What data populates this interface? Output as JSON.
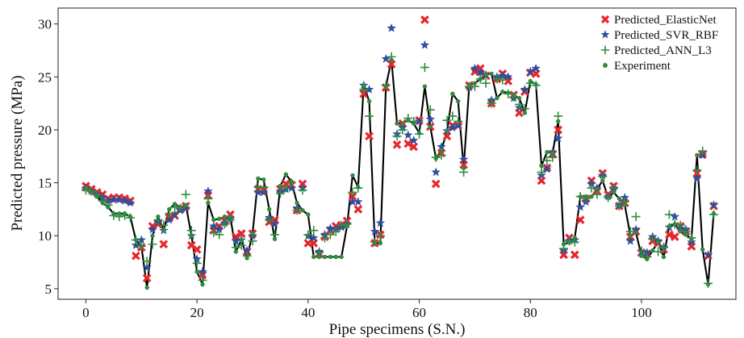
{
  "chart_data": {
    "type": "scatter",
    "xlabel": "Pipe specimens (S.N.)",
    "ylabel": "Predicted pressure (MPa)",
    "xlim": [
      -5,
      117
    ],
    "ylim": [
      4,
      31.5
    ],
    "xticks": [
      0,
      20,
      40,
      60,
      80,
      100
    ],
    "yticks": [
      5,
      10,
      15,
      20,
      25,
      30
    ],
    "grid": false,
    "legend_position": "top-right",
    "x": [
      0,
      1,
      2,
      3,
      4,
      5,
      6,
      7,
      8,
      9,
      10,
      11,
      12,
      13,
      14,
      15,
      16,
      17,
      18,
      19,
      20,
      21,
      22,
      23,
      24,
      25,
      26,
      27,
      28,
      29,
      30,
      31,
      32,
      33,
      34,
      35,
      36,
      37,
      38,
      39,
      40,
      41,
      42,
      43,
      44,
      45,
      46,
      47,
      48,
      49,
      50,
      51,
      52,
      53,
      54,
      55,
      56,
      57,
      58,
      59,
      60,
      61,
      62,
      63,
      64,
      65,
      66,
      67,
      68,
      69,
      70,
      71,
      72,
      73,
      74,
      75,
      76,
      77,
      78,
      79,
      80,
      81,
      82,
      83,
      84,
      85,
      86,
      87,
      88,
      89,
      90,
      91,
      92,
      93,
      94,
      95,
      96,
      97,
      98,
      99,
      100,
      101,
      102,
      103,
      104,
      105,
      106,
      107,
      108,
      109,
      110,
      111,
      112,
      113
    ],
    "series": [
      {
        "name": "Predicted_ElasticNet",
        "color": "#e8262a",
        "marker": "x",
        "values": [
          14.7,
          14.4,
          14.1,
          13.9,
          13.5,
          13.6,
          13.6,
          13.5,
          13.3,
          8.1,
          8.9,
          6.0,
          10.9,
          11.1,
          9.2,
          11.7,
          11.9,
          12.5,
          12.8,
          9.1,
          8.7,
          6.3,
          13.8,
          10.5,
          10.9,
          11.4,
          12.0,
          9.9,
          10.2,
          8.5,
          10.2,
          14.4,
          14.3,
          11.3,
          11.5,
          14.4,
          14.9,
          14.8,
          12.4,
          14.9,
          9.3,
          9.3,
          8.3,
          9.9,
          10.5,
          10.9,
          11.0,
          11.4,
          13.7,
          12.5,
          23.4,
          19.4,
          9.3,
          10.1,
          24.0,
          26.2,
          18.6,
          20.6,
          18.7,
          18.4,
          20.9,
          30.4,
          20.3,
          14.9,
          17.8,
          19.4,
          20.4,
          20.4,
          16.7,
          24.2,
          25.5,
          25.8,
          25.1,
          22.5,
          24.8,
          25.3,
          24.6,
          23.3,
          21.6,
          23.6,
          25.4,
          25.3,
          15.2,
          16.4,
          17.7,
          20.0,
          8.2,
          9.8,
          8.2,
          11.5,
          13.5,
          15.2,
          14.2,
          15.9,
          13.9,
          14.7,
          12.8,
          13.1,
          9.9,
          10.4,
          8.4,
          8.3,
          9.5,
          9.3,
          8.7,
          10.1,
          9.9,
          10.9,
          10.4,
          9.0,
          15.9,
          17.7,
          8.1,
          12.8
        ]
      },
      {
        "name": "Predicted_SVR_RBF",
        "color": "#2c4fa0",
        "marker": "star",
        "values": [
          14.5,
          14.2,
          13.9,
          13.6,
          13.3,
          13.4,
          13.4,
          13.3,
          13.1,
          9.1,
          9.6,
          7.0,
          10.6,
          11.3,
          10.5,
          11.5,
          12.0,
          12.4,
          12.6,
          10.0,
          7.8,
          6.6,
          14.2,
          10.9,
          10.6,
          11.2,
          11.6,
          9.5,
          9.6,
          8.6,
          10.0,
          14.1,
          14.1,
          11.7,
          11.1,
          14.2,
          14.4,
          14.5,
          12.6,
          14.5,
          10.0,
          9.8,
          8.5,
          10.1,
          10.7,
          10.6,
          10.8,
          11.1,
          13.2,
          13.2,
          24.2,
          23.8,
          10.4,
          11.2,
          26.7,
          29.6,
          19.6,
          20.2,
          19.5,
          19.0,
          20.8,
          28.0,
          21.0,
          16.0,
          18.4,
          19.9,
          20.2,
          20.4,
          17.2,
          24.0,
          25.8,
          25.4,
          25.2,
          22.8,
          25.0,
          25.1,
          25.0,
          23.0,
          22.1,
          23.8,
          25.5,
          25.8,
          15.7,
          16.3,
          17.9,
          19.2,
          8.6,
          9.5,
          9.6,
          12.7,
          13.2,
          14.9,
          14.5,
          15.7,
          13.7,
          14.5,
          12.9,
          13.6,
          9.5,
          10.6,
          8.5,
          8.4,
          9.9,
          9.5,
          8.9,
          10.8,
          11.8,
          10.7,
          10.6,
          9.4,
          15.4,
          17.6,
          8.2,
          12.9
        ]
      },
      {
        "name": "Predicted_ANN_L3",
        "color": "#2e8b3f",
        "marker": "plus",
        "values": [
          14.3,
          14.2,
          13.9,
          13.3,
          12.9,
          11.9,
          11.8,
          11.9,
          11.7,
          9.6,
          9.0,
          7.6,
          9.2,
          11.5,
          11.0,
          12.1,
          12.7,
          12.6,
          13.9,
          10.5,
          7.4,
          5.8,
          13.5,
          10.3,
          10.1,
          11.1,
          11.5,
          8.9,
          9.1,
          8.1,
          9.5,
          14.6,
          14.6,
          11.5,
          10.1,
          14.0,
          14.5,
          15.0,
          12.4,
          14.3,
          10.1,
          10.5,
          8.4,
          9.8,
          10.1,
          10.4,
          11.0,
          11.1,
          14.1,
          14.5,
          23.8,
          21.3,
          9.4,
          10.0,
          24.2,
          26.9,
          19.4,
          20.0,
          21.1,
          20.8,
          19.6,
          25.9,
          21.9,
          17.4,
          17.6,
          20.9,
          21.3,
          20.8,
          16.0,
          24.1,
          24.1,
          24.8,
          24.4,
          22.5,
          24.8,
          24.7,
          23.4,
          23.1,
          22.4,
          22.0,
          24.4,
          24.2,
          16.0,
          17.1,
          17.4,
          21.3,
          8.8,
          9.5,
          9.4,
          13.7,
          13.5,
          14.5,
          13.9,
          15.6,
          13.6,
          14.5,
          12.8,
          13.2,
          10.4,
          11.8,
          8.6,
          8.0,
          9.7,
          8.5,
          8.9,
          12.0,
          11.1,
          11.0,
          10.4,
          9.8,
          16.2,
          18.0,
          5.5,
          12.0
        ]
      },
      {
        "name": "Experiment",
        "color": "#2e8b3f",
        "marker": "circle",
        "values": [
          14.5,
          14.1,
          13.7,
          13.1,
          12.7,
          12.1,
          12.1,
          12.1,
          11.8,
          9.6,
          9.0,
          5.1,
          10.0,
          11.8,
          10.5,
          12.5,
          13.0,
          12.7,
          12.9,
          10.0,
          6.6,
          5.4,
          13.1,
          11.5,
          11.6,
          11.8,
          11.8,
          8.5,
          9.6,
          7.9,
          10.2,
          15.4,
          15.3,
          12.5,
          9.7,
          14.7,
          15.8,
          15.1,
          13.1,
          12.4,
          12.0,
          8.0,
          8.0,
          8.0,
          8.0,
          8.0,
          8.0,
          10.9,
          15.7,
          14.6,
          24.2,
          22.7,
          9.3,
          9.3,
          24.1,
          26.6,
          20.6,
          20.6,
          20.9,
          20.6,
          19.7,
          24.1,
          20.3,
          17.3,
          18.1,
          19.9,
          23.4,
          22.7,
          16.4,
          24.2,
          24.4,
          24.8,
          25.2,
          25.3,
          23.0,
          23.6,
          23.5,
          23.3,
          23.0,
          21.6,
          24.6,
          24.3,
          16.6,
          17.9,
          17.8,
          20.8,
          9.2,
          9.4,
          9.8,
          13.7,
          13.7,
          13.7,
          14.4,
          15.2,
          13.6,
          14.1,
          13.5,
          12.9,
          10.0,
          10.3,
          8.1,
          7.8,
          8.6,
          9.4,
          8.0,
          10.9,
          11.1,
          10.4,
          10.1,
          9.7,
          17.6,
          8.7,
          5.4,
          12.1
        ]
      }
    ]
  }
}
